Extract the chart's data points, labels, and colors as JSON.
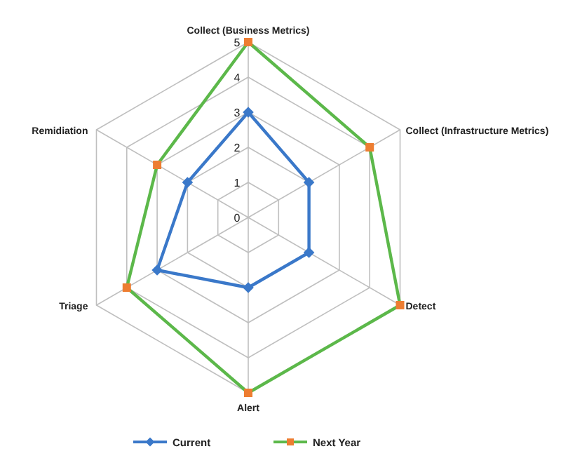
{
  "chart_data": {
    "type": "radar",
    "categories": [
      "Collect (Business Metrics)",
      "Collect (Infrastructure Metrics)",
      "Detect",
      "Alert",
      "Triage",
      "Remidiation"
    ],
    "ylim": [
      0,
      5
    ],
    "yticks": [
      0,
      1,
      2,
      3,
      4,
      5
    ],
    "grid": true,
    "legend": "bottom",
    "series": [
      {
        "name": "Current",
        "color": "#3a78c9",
        "marker": "diamond",
        "colors": [
          "#3a78c9",
          "#3a78c9",
          "#3a78c9",
          "#3a78c9",
          "#3a78c9",
          "#3a78c9"
        ],
        "values": [
          3,
          2,
          2,
          2,
          3,
          2
        ]
      },
      {
        "name": "Next Year",
        "color": "#5cb84a",
        "marker": "square",
        "colors": [
          "#ed7d31",
          "#ed7d31",
          "#ed7d31",
          "#ed7d31",
          "#ed7d31",
          "#ed7d31"
        ],
        "values": [
          5,
          4,
          5,
          5,
          4,
          3
        ]
      }
    ]
  }
}
